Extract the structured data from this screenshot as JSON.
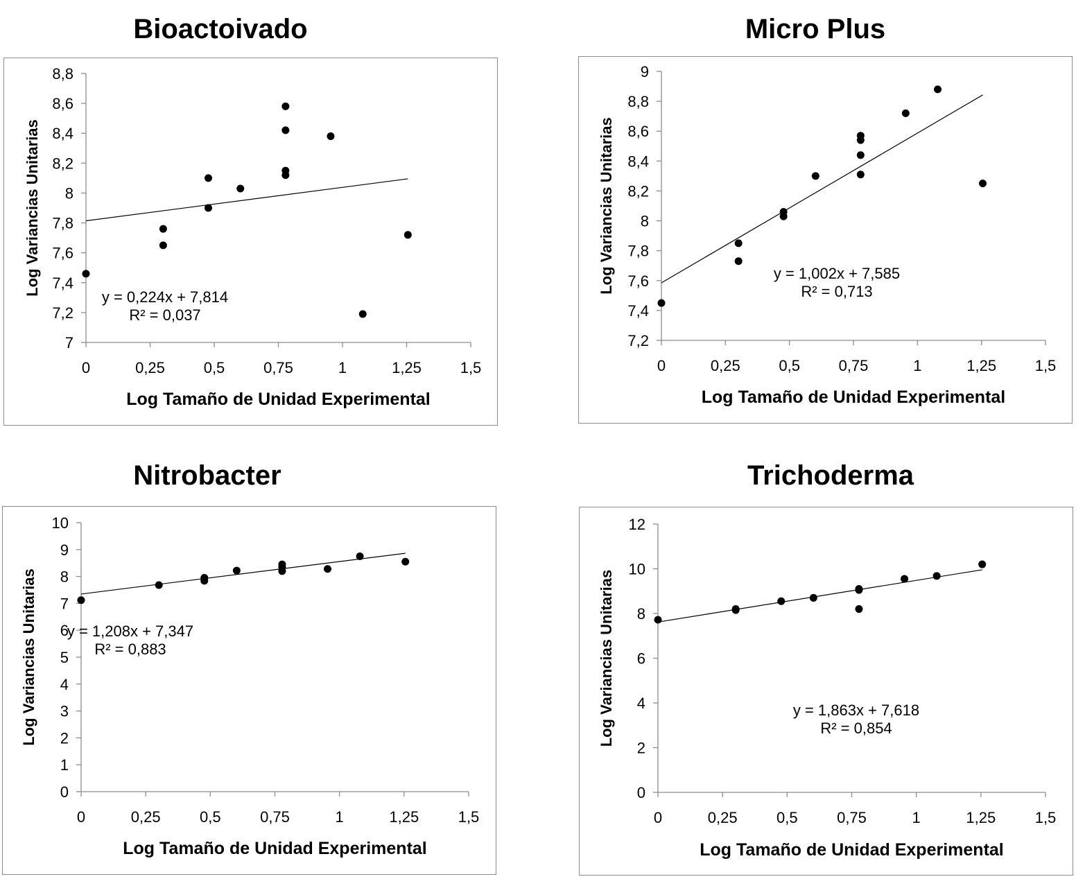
{
  "chart_data": [
    {
      "type": "scatter",
      "title": "Bioactoivado",
      "xlabel": "Log Tamaño de Unidad Experimental",
      "ylabel": "Log Variancias Unitarias",
      "xlim": [
        0,
        1.5
      ],
      "ylim": [
        7,
        8.8
      ],
      "xticks": [
        0,
        0.25,
        0.5,
        0.75,
        1,
        1.25,
        1.5
      ],
      "xtick_labels": [
        "0",
        "0,25",
        "0,5",
        "0,75",
        "1",
        "1,25",
        "1,5"
      ],
      "yticks": [
        7,
        7.2,
        7.4,
        7.6,
        7.8,
        8,
        8.2,
        8.4,
        8.6,
        8.8
      ],
      "ytick_labels": [
        "7",
        "7,2",
        "7,4",
        "7,6",
        "7,8",
        "8",
        "8,2",
        "8,4",
        "8,6",
        "8,8"
      ],
      "points": [
        [
          0,
          7.46
        ],
        [
          0.301,
          7.76
        ],
        [
          0.301,
          7.65
        ],
        [
          0.477,
          8.1
        ],
        [
          0.477,
          7.9
        ],
        [
          0.602,
          8.03
        ],
        [
          0.778,
          8.58
        ],
        [
          0.778,
          8.42
        ],
        [
          0.778,
          8.15
        ],
        [
          0.778,
          8.12
        ],
        [
          0.954,
          8.38
        ],
        [
          1.079,
          7.19
        ],
        [
          1.255,
          7.72
        ]
      ],
      "trendline": {
        "slope": 0.224,
        "intercept": 7.814,
        "x_range": [
          0,
          1.255
        ]
      },
      "equation": "y = 0,224x + 7,814",
      "r2_label": "R² = 0,037",
      "grid": false,
      "legend": "none"
    },
    {
      "type": "scatter",
      "title": "Micro Plus",
      "xlabel": "Log Tamaño de Unidad Experimental",
      "ylabel": "Log Variancias Unitarias",
      "xlim": [
        0,
        1.5
      ],
      "ylim": [
        7.2,
        9
      ],
      "xticks": [
        0,
        0.25,
        0.5,
        0.75,
        1,
        1.25,
        1.5
      ],
      "xtick_labels": [
        "0",
        "0,25",
        "0,5",
        "0,75",
        "1",
        "1,25",
        "1,5"
      ],
      "yticks": [
        7.2,
        7.4,
        7.6,
        7.8,
        8,
        8.2,
        8.4,
        8.6,
        8.8,
        9
      ],
      "ytick_labels": [
        "7,2",
        "7,4",
        "7,6",
        "7,8",
        "8",
        "8,2",
        "8,4",
        "8,6",
        "8,8",
        "9"
      ],
      "points": [
        [
          0,
          7.45
        ],
        [
          0.301,
          7.85
        ],
        [
          0.301,
          7.73
        ],
        [
          0.477,
          8.06
        ],
        [
          0.477,
          8.03
        ],
        [
          0.602,
          8.3
        ],
        [
          0.778,
          8.57
        ],
        [
          0.778,
          8.54
        ],
        [
          0.778,
          8.44
        ],
        [
          0.778,
          8.31
        ],
        [
          0.954,
          8.72
        ],
        [
          1.079,
          8.88
        ],
        [
          1.255,
          8.25
        ]
      ],
      "trendline": {
        "slope": 1.002,
        "intercept": 7.585,
        "x_range": [
          0,
          1.255
        ]
      },
      "equation": "y = 1,002x + 7,585",
      "r2_label": "R² = 0,713",
      "grid": false,
      "legend": "none"
    },
    {
      "type": "scatter",
      "title": "Nitrobacter",
      "xlabel": "Log Tamaño de Unidad Experimental",
      "ylabel": "Log Variancias Unitarias",
      "xlim": [
        0,
        1.5
      ],
      "ylim": [
        0,
        10
      ],
      "xticks": [
        0,
        0.25,
        0.5,
        0.75,
        1,
        1.25,
        1.5
      ],
      "xtick_labels": [
        "0",
        "0,25",
        "0,5",
        "0,75",
        "1",
        "1,25",
        "1,5"
      ],
      "yticks": [
        0,
        1,
        2,
        3,
        4,
        5,
        6,
        7,
        8,
        9,
        10
      ],
      "ytick_labels": [
        "0",
        "1",
        "2",
        "3",
        "4",
        "5",
        "6",
        "7",
        "8",
        "9",
        "10"
      ],
      "points": [
        [
          0,
          7.12
        ],
        [
          0.301,
          7.68
        ],
        [
          0.477,
          7.95
        ],
        [
          0.477,
          7.84
        ],
        [
          0.602,
          8.22
        ],
        [
          0.778,
          8.45
        ],
        [
          0.778,
          8.35
        ],
        [
          0.778,
          8.2
        ],
        [
          0.954,
          8.28
        ],
        [
          1.079,
          8.75
        ],
        [
          1.255,
          8.55
        ]
      ],
      "trendline": {
        "slope": 1.208,
        "intercept": 7.347,
        "x_range": [
          0,
          1.255
        ]
      },
      "equation": "y = 1,208x + 7,347",
      "r2_label": "R² = 0,883",
      "grid": false,
      "legend": "none"
    },
    {
      "type": "scatter",
      "title": "Trichoderma",
      "xlabel": "Log Tamaño de Unidad Experimental",
      "ylabel": "Log Variancias Unitarias",
      "xlim": [
        0,
        1.5
      ],
      "ylim": [
        0,
        12
      ],
      "xticks": [
        0,
        0.25,
        0.5,
        0.75,
        1,
        1.25,
        1.5
      ],
      "xtick_labels": [
        "0",
        "0,25",
        "0,5",
        "0,75",
        "1",
        "1,25",
        "1,5"
      ],
      "yticks": [
        0,
        2,
        4,
        6,
        8,
        10,
        12
      ],
      "ytick_labels": [
        "0",
        "2",
        "4",
        "6",
        "8",
        "10",
        "12"
      ],
      "points": [
        [
          0,
          7.72
        ],
        [
          0.301,
          8.2
        ],
        [
          0.301,
          8.15
        ],
        [
          0.477,
          8.55
        ],
        [
          0.602,
          8.7
        ],
        [
          0.778,
          9.1
        ],
        [
          0.778,
          9.05
        ],
        [
          0.778,
          8.2
        ],
        [
          0.954,
          9.55
        ],
        [
          1.079,
          9.68
        ],
        [
          1.255,
          10.2
        ]
      ],
      "trendline": {
        "slope": 1.863,
        "intercept": 7.618,
        "x_range": [
          0,
          1.255
        ]
      },
      "equation": "y = 1,863x + 7,618",
      "r2_label": "R² = 0,854",
      "grid": false,
      "legend": "none"
    }
  ]
}
